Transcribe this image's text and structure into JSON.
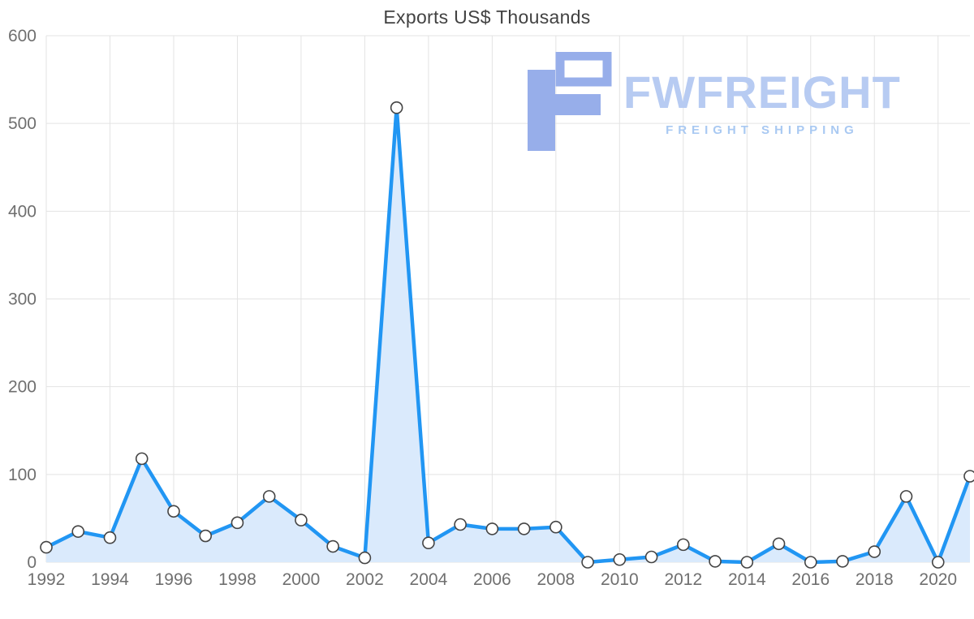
{
  "chart_data": {
    "type": "line",
    "title": "Exports US$ Thousands",
    "x": [
      1992,
      1993,
      1994,
      1995,
      1996,
      1997,
      1998,
      1999,
      2000,
      2001,
      2002,
      2003,
      2004,
      2005,
      2006,
      2007,
      2008,
      2009,
      2010,
      2011,
      2012,
      2013,
      2014,
      2015,
      2016,
      2017,
      2018,
      2019,
      2020,
      2021
    ],
    "series": [
      {
        "name": "Exports US$ Thousands",
        "values": [
          17,
          35,
          28,
          118,
          58,
          30,
          45,
          75,
          48,
          18,
          5,
          518,
          22,
          43,
          38,
          38,
          40,
          0,
          3,
          6,
          20,
          1,
          0,
          21,
          0,
          1,
          12,
          75,
          0,
          98
        ]
      }
    ],
    "xlabel": "",
    "ylabel": "",
    "ylim": [
      0,
      600
    ],
    "yticks": [
      0,
      100,
      200,
      300,
      400,
      500,
      600
    ],
    "xticks": [
      1992,
      1994,
      1996,
      1998,
      2000,
      2002,
      2004,
      2006,
      2008,
      2010,
      2012,
      2014,
      2016,
      2018,
      2020
    ],
    "grid": true,
    "legend_position": "none",
    "colors": {
      "line": "#2196f3",
      "area_fill": "#daeafc",
      "marker_fill": "#ffffff",
      "marker_stroke": "#444444",
      "grid": "#e3e3e3",
      "tick_label": "#6f6f6f",
      "title": "#424242"
    }
  },
  "watermark": {
    "brand": "FWFREIGHT",
    "tagline": "FREIGHT SHIPPING",
    "colors": {
      "icon": "#97aeea",
      "brand_text": "#b7cbf2",
      "tagline_text": "#a9c9f2"
    }
  }
}
